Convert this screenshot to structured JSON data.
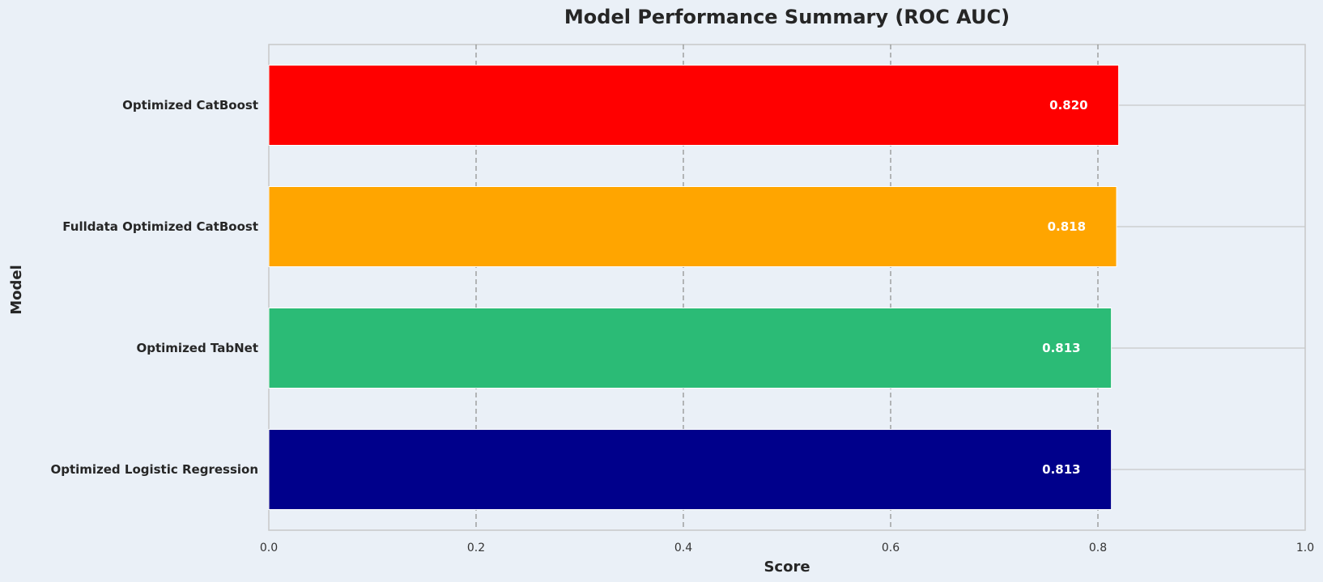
{
  "chart_data": {
    "type": "bar",
    "orientation": "horizontal",
    "title": "Model Performance Summary (ROC AUC)",
    "xlabel": "Score",
    "ylabel": "Model",
    "xlim": [
      0,
      1.0
    ],
    "xticks": [
      "0.0",
      "0.2",
      "0.4",
      "0.6",
      "0.8",
      "1.0"
    ],
    "xtick_values": [
      0,
      0.2,
      0.4,
      0.6,
      0.8,
      1.0
    ],
    "categories": [
      "Optimized CatBoost",
      "Fulldata Optimized CatBoost",
      "Optimized TabNet",
      "Optimized Logistic Regression"
    ],
    "values": [
      0.82,
      0.818,
      0.813,
      0.813
    ],
    "value_labels": [
      "0.820",
      "0.818",
      "0.813",
      "0.813"
    ],
    "colors": [
      "#ff0000",
      "#ffa500",
      "#2bbb76",
      "#00008b"
    ],
    "grid": "x dashed, y solid",
    "legend": "none"
  }
}
